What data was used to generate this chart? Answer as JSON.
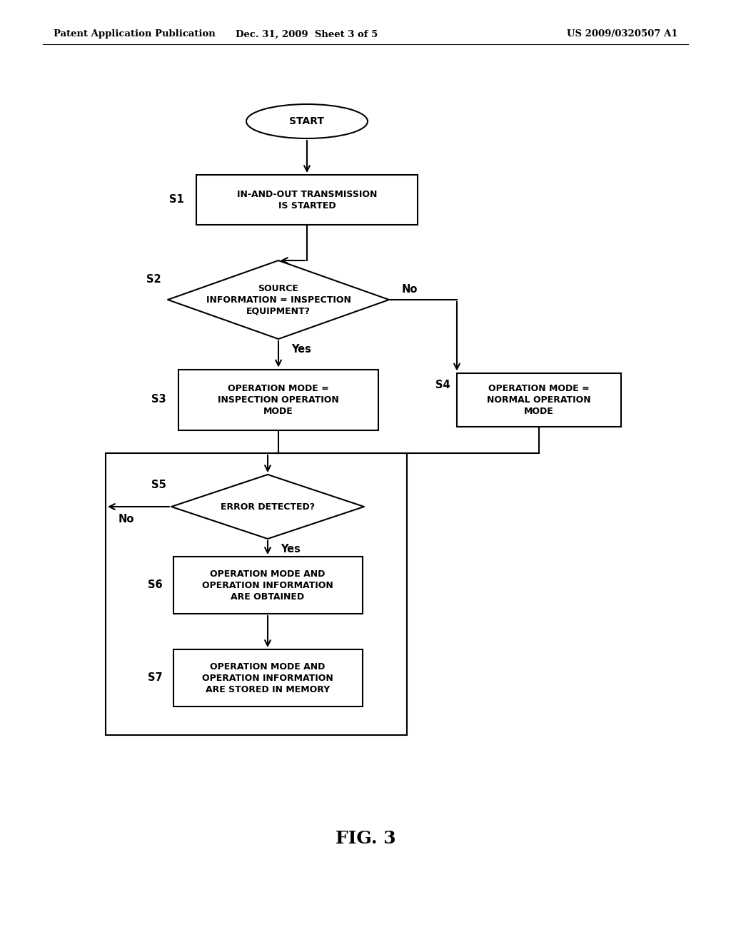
{
  "bg_color": "#ffffff",
  "header_left": "Patent Application Publication",
  "header_mid": "Dec. 31, 2009  Sheet 3 of 5",
  "header_right": "US 2009/0320507 A1",
  "figure_label": "FIG. 3",
  "lw": 1.5,
  "font_size_node": 9.0,
  "font_size_label": 10.5,
  "font_size_header": 9.5,
  "font_size_fig": 18
}
